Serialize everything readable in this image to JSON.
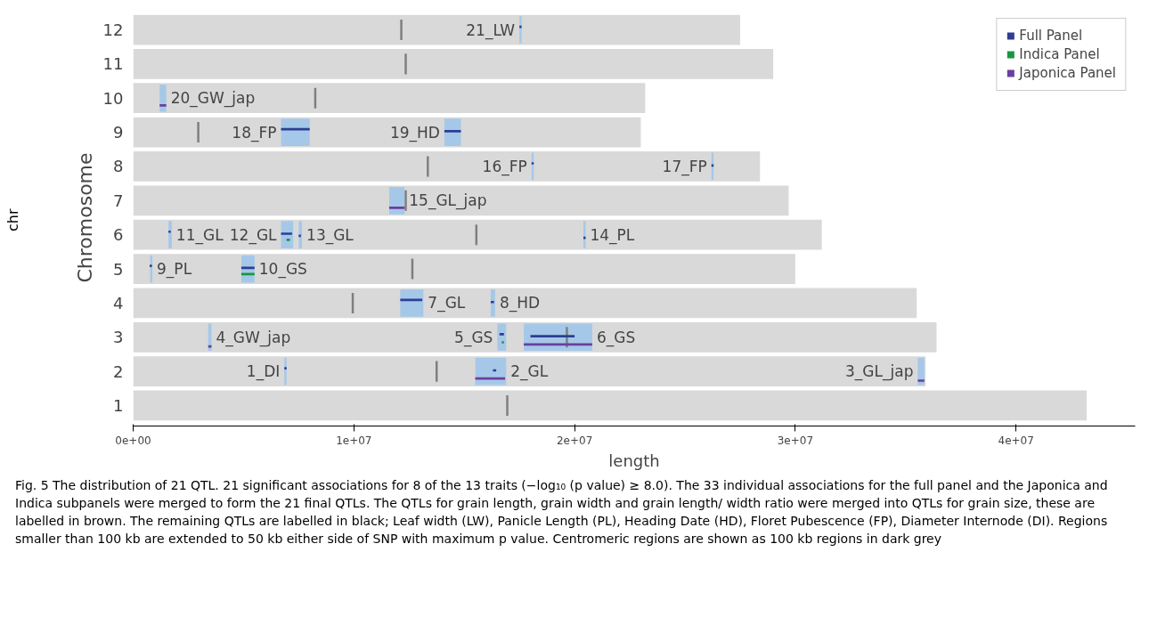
{
  "chart_data": {
    "type": "bar",
    "orientation": "horizontal",
    "xlabel": "length",
    "ylabel": "Chromosome",
    "categories": [
      "12",
      "11",
      "10",
      "9",
      "8",
      "7",
      "6",
      "5",
      "4",
      "3",
      "2",
      "1"
    ],
    "xlim": [
      0,
      45400000
    ],
    "xticks": [
      {
        "value": 0,
        "label": "0e+00"
      },
      {
        "value": 10000000,
        "label": "1e+07"
      },
      {
        "value": 20000000,
        "label": "2e+07"
      },
      {
        "value": 30000000,
        "label": "3e+07"
      },
      {
        "value": 40000000,
        "label": "4e+07"
      }
    ],
    "grid": false,
    "legend": "top right",
    "series": [
      {
        "color": "#d9d9d9",
        "values": [
          27500000,
          29000000,
          23200000,
          23000000,
          28400000,
          29700000,
          31200000,
          30000000,
          35500000,
          36400000,
          35900000,
          43200000
        ]
      },
      {
        "color": "#a6c8e8",
        "base": [
          17500000,
          null,
          1200000,
          6700000,
          18050000,
          11600000,
          1600000,
          770000,
          12100000,
          3400000,
          6850000,
          null
        ],
        "values": [
          100000,
          null,
          300000,
          1300000,
          100000,
          700000,
          150000,
          100000,
          1050000,
          150000,
          100000,
          null
        ]
      },
      {
        "color": "#a6c8e8",
        "base": [
          null,
          null,
          null,
          14100000,
          26200000,
          null,
          6700000,
          4900000,
          16200000,
          16500000,
          15500000,
          null
        ],
        "values": [
          null,
          null,
          null,
          750000,
          100000,
          null,
          550000,
          600000,
          200000,
          400000,
          1400000,
          null
        ]
      },
      {
        "color": "#a6c8e8",
        "base": [
          null,
          null,
          null,
          null,
          null,
          null,
          7500000,
          null,
          null,
          17700000,
          35550000,
          null
        ],
        "values": [
          null,
          null,
          null,
          null,
          null,
          null,
          150000,
          null,
          null,
          3100000,
          300000,
          null
        ]
      },
      {
        "color": "#a6c8e8",
        "base": [
          null,
          null,
          null,
          null,
          null,
          null,
          20400000,
          null,
          null,
          null,
          null,
          null
        ],
        "values": [
          null,
          null,
          null,
          null,
          null,
          null,
          100000,
          null,
          null,
          null,
          null,
          null
        ]
      },
      {
        "color": "#7f7f7f",
        "base": [
          12100000,
          12300000,
          8200000,
          2900000,
          13300000,
          12300000,
          15500000,
          12600000,
          9900000,
          19600000,
          13700000,
          16900000
        ],
        "values": [
          100000,
          100000,
          100000,
          100000,
          100000,
          100000,
          100000,
          100000,
          100000,
          100000,
          100000,
          100000
        ]
      },
      {
        "name": "Full Panel",
        "color": "#2c3e94",
        "base": [
          17500000,
          null,
          null,
          6700000,
          18050000,
          null,
          1600000,
          750000,
          12100000,
          16600000,
          6850000,
          null
        ],
        "values": [
          100000,
          null,
          null,
          1300000,
          100000,
          null,
          100000,
          100000,
          1000000,
          200000,
          100000,
          null
        ]
      },
      {
        "color": "#2c3e94",
        "base": [
          null,
          null,
          null,
          14100000,
          26200000,
          null,
          6700000,
          4900000,
          16200000,
          18000000,
          16300000,
          null
        ],
        "values": [
          null,
          null,
          null,
          750000,
          100000,
          null,
          500000,
          600000,
          150000,
          2000000,
          150000,
          null
        ]
      },
      {
        "color": "#2c3e94",
        "base": [
          null,
          null,
          null,
          null,
          null,
          null,
          7500000,
          null,
          null,
          null,
          null,
          null
        ],
        "values": [
          null,
          null,
          null,
          null,
          null,
          null,
          100000,
          null,
          null,
          null,
          null,
          null
        ]
      },
      {
        "color": "#2c3e94",
        "base": [
          null,
          null,
          null,
          null,
          null,
          null,
          20400000,
          null,
          null,
          null,
          null,
          null
        ],
        "values": [
          null,
          null,
          null,
          null,
          null,
          null,
          100000,
          null,
          null,
          null,
          null,
          null
        ]
      },
      {
        "name": "Indica Panel",
        "color": "#1a9641",
        "base": [
          null,
          null,
          null,
          null,
          null,
          null,
          6950000,
          4900000,
          null,
          16700000,
          null,
          null
        ],
        "values": [
          null,
          null,
          null,
          null,
          null,
          null,
          150000,
          600000,
          null,
          100000,
          null,
          null
        ]
      },
      {
        "name": "Japonica Panel",
        "color": "#6a3fa0",
        "base": [
          null,
          null,
          1200000,
          null,
          null,
          11600000,
          null,
          null,
          null,
          17700000,
          15500000,
          null
        ],
        "values": [
          null,
          null,
          300000,
          null,
          null,
          700000,
          null,
          null,
          null,
          3100000,
          1350000,
          null
        ]
      },
      {
        "color": "#6a3fa0",
        "base": [
          null,
          null,
          null,
          null,
          null,
          null,
          null,
          null,
          null,
          3400000,
          35550000,
          null
        ],
        "values": [
          null,
          null,
          null,
          null,
          null,
          null,
          null,
          null,
          null,
          150000,
          300000,
          null
        ]
      }
    ],
    "annotations": [
      "chr",
      "Fig. 5 The distribution of 21 QTL. 21 significant associations for 8 of the 13 traits (−log₁₀ (p value) ≥ 8.0). The 33 individual associations for the full panel and the Japonica and Indica subpanels were merged to form the 21 final QTLs. The QTLs for grain length, grain width and grain length/ width ratio were merged into QTLs for grain size, these are labelled in brown. The remaining QTLs are labelled in black; Leaf width (LW), Panicle Length (PL), Heading Date (HD), Floret Pubescence (FP), Diameter Internode (DI). Regions smaller than 100 kb are extended to 50 kb either side of SNP with maximum p value. Centromeric regions are shown as 100 kb regions in dark grey",
      {
        "text": "21_LW",
        "x": 17500000,
        "y": "12"
      },
      {
        "text": "20_GW_jap",
        "x": 1500000,
        "y": "10"
      },
      {
        "text": "18_FP",
        "x": 6700000,
        "y": "9"
      },
      {
        "text": "19_HD",
        "x": 14100000,
        "y": "9"
      },
      {
        "text": "16_FP",
        "x": 18050000,
        "y": "8"
      },
      {
        "text": "17_FP",
        "x": 26200000,
        "y": "8"
      },
      {
        "text": "15_GL_jap",
        "x": 12300000,
        "y": "7"
      },
      {
        "text": "11_GL",
        "x": 1750000,
        "y": "6"
      },
      {
        "text": "12_GL",
        "x": 6700000,
        "y": "6"
      },
      {
        "text": "13_GL",
        "x": 7650000,
        "y": "6"
      },
      {
        "text": "14_PL",
        "x": 20500000,
        "y": "6"
      },
      {
        "text": "9_PL",
        "x": 870000,
        "y": "5"
      },
      {
        "text": "10_GS",
        "x": 5500000,
        "y": "5"
      },
      {
        "text": "7_GL",
        "x": 13150000,
        "y": "4"
      },
      {
        "text": "8_HD",
        "x": 16400000,
        "y": "4"
      },
      {
        "text": "4_GW_jap",
        "x": 3550000,
        "y": "3"
      },
      {
        "text": "5_GS",
        "x": 16500000,
        "y": "3"
      },
      {
        "text": "6_GS",
        "x": 20800000,
        "y": "3"
      },
      {
        "text": "1_DI",
        "x": 6850000,
        "y": "2"
      },
      {
        "text": "2_GL",
        "x": 16900000,
        "y": "2"
      },
      {
        "text": "3_GL_jap",
        "x": 35550000,
        "y": "2"
      }
    ]
  }
}
